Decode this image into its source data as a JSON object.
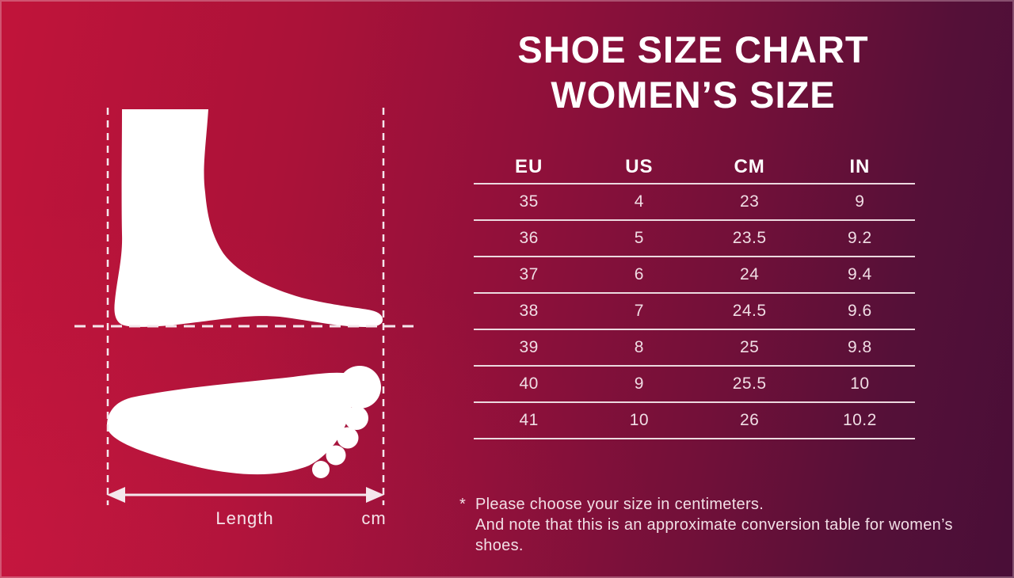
{
  "title": {
    "line1": "SHOE SIZE CHART",
    "line2": "WOMEN’S SIZE"
  },
  "diagram": {
    "length_label": "Length",
    "unit_label": "cm"
  },
  "table": {
    "headers": [
      "EU",
      "US",
      "CM",
      "IN"
    ],
    "rows": [
      [
        "35",
        "4",
        "23",
        "9"
      ],
      [
        "36",
        "5",
        "23.5",
        "9.2"
      ],
      [
        "37",
        "6",
        "24",
        "9.4"
      ],
      [
        "38",
        "7",
        "24.5",
        "9.6"
      ],
      [
        "39",
        "8",
        "25",
        "9.8"
      ],
      [
        "40",
        "9",
        "25.5",
        "10"
      ],
      [
        "41",
        "10",
        "26",
        "10.2"
      ]
    ]
  },
  "footnote": {
    "marker": "*",
    "line1": "Please choose your size in centimeters.",
    "line2": "And note that this is an approximate conversion table for women’s shoes."
  },
  "colors": {
    "background_left": "#c1143a",
    "background_right": "#490e37",
    "foot_silhouette": "#ffffff",
    "table_line": "#ecd9df",
    "body_text": "#f0dde4",
    "heading_text": "#ffffff"
  },
  "chart_data": {
    "type": "table",
    "title": "Shoe Size Chart – Women's Size",
    "columns": [
      "EU",
      "US",
      "CM",
      "IN"
    ],
    "rows": [
      [
        35,
        4,
        23,
        9
      ],
      [
        36,
        5,
        23.5,
        9.2
      ],
      [
        37,
        6,
        24,
        9.4
      ],
      [
        38,
        7,
        24.5,
        9.6
      ],
      [
        39,
        8,
        25,
        9.8
      ],
      [
        40,
        9,
        25.5,
        10
      ],
      [
        41,
        10,
        26,
        10.2
      ]
    ]
  }
}
